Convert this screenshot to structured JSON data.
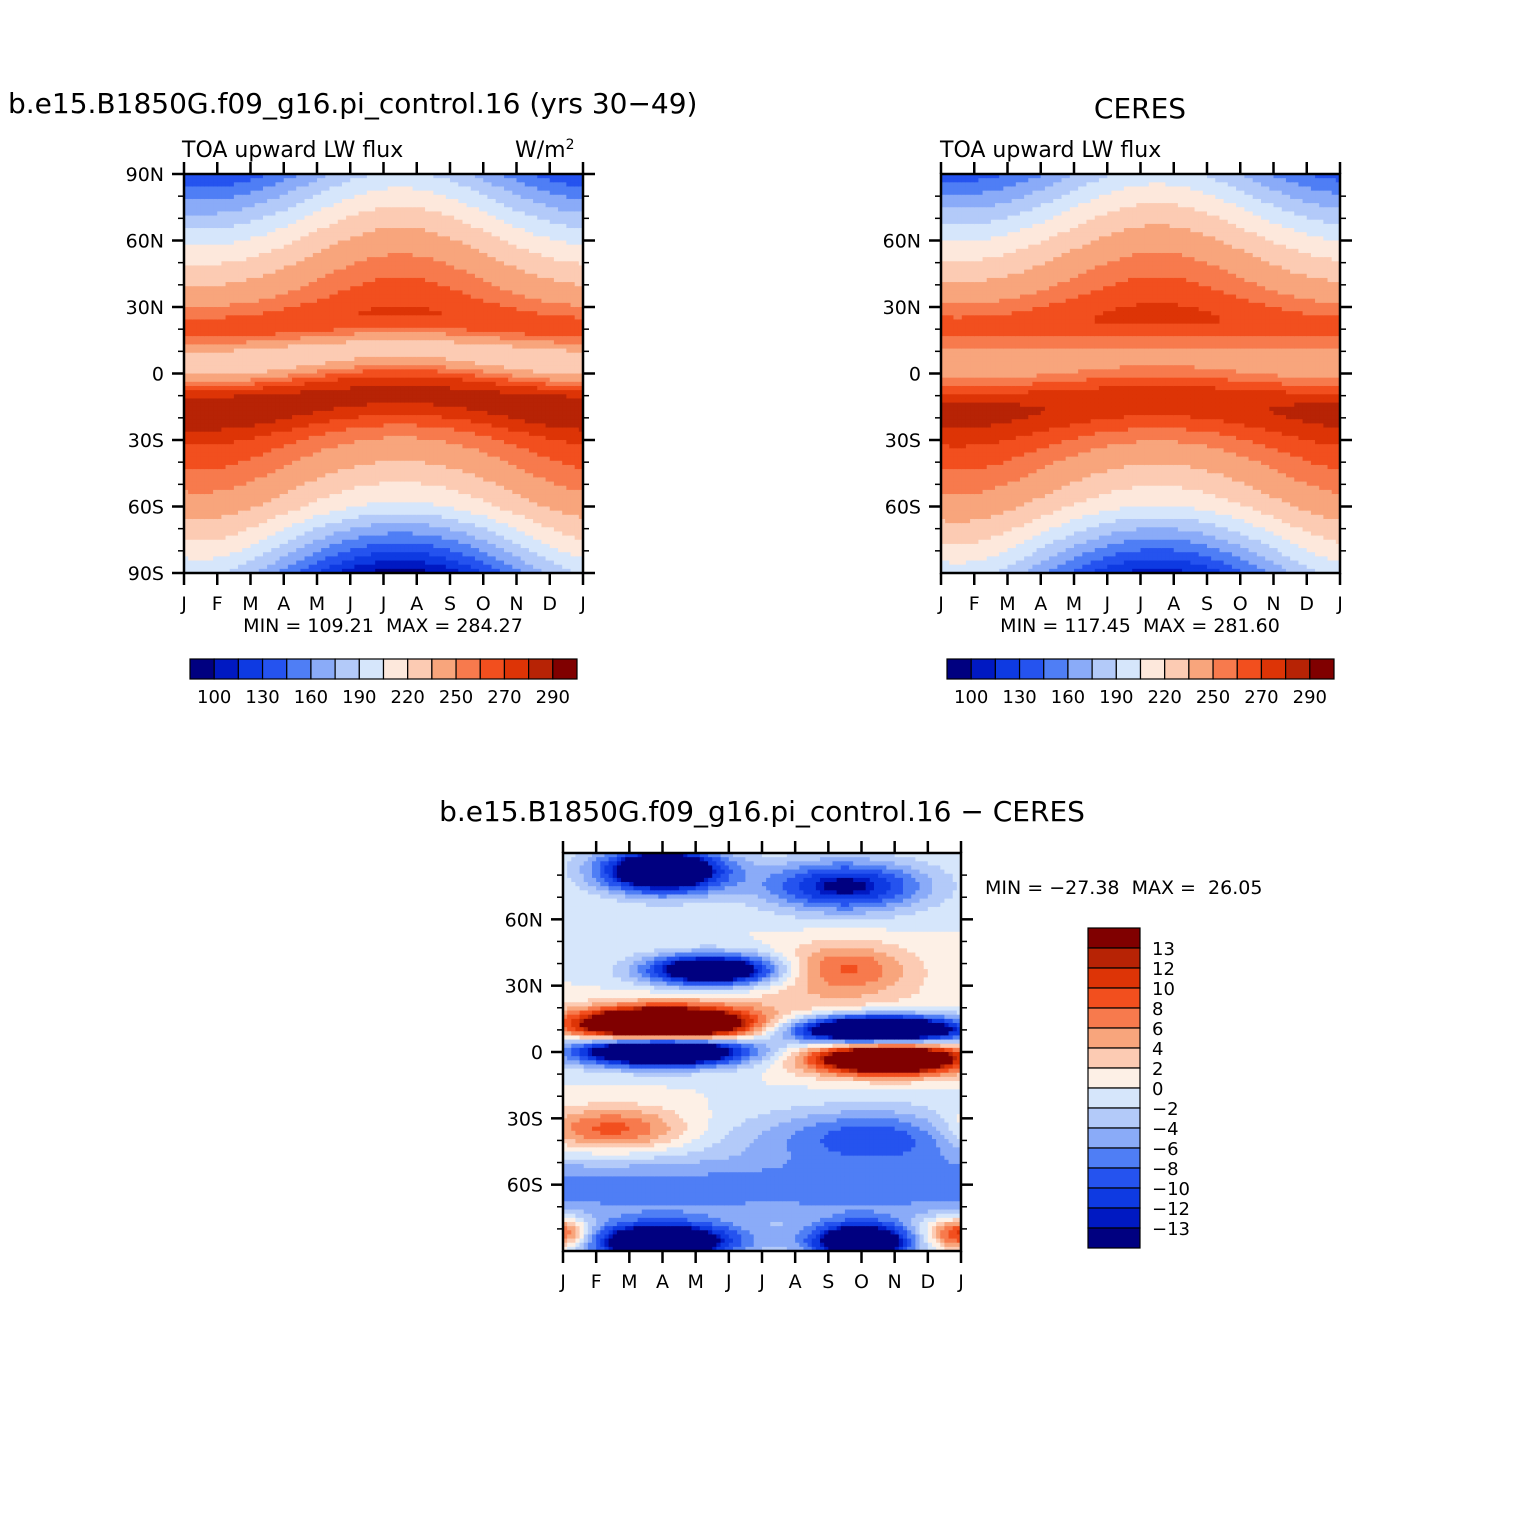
{
  "palette": {
    "full": [
      "#000080",
      "#0019c2",
      "#0e3ae2",
      "#2553ef",
      "#4f7ef5",
      "#8aabf8",
      "#b3caf9",
      "#d6e6fb",
      "#fde8dc",
      "#fccbb3",
      "#f8a57c",
      "#f77a4d",
      "#f24f1e",
      "#dd3406",
      "#b72305",
      "#800000"
    ],
    "diff": [
      "#000080",
      "#0019c2",
      "#0e3ae2",
      "#2553ef",
      "#4f7ef5",
      "#8aabf8",
      "#b3caf9",
      "#d6e6fb",
      "#fdf0e6",
      "#fccbb3",
      "#f8a57c",
      "#f77a4d",
      "#f24f1e",
      "#dd3406",
      "#b72305",
      "#800000"
    ]
  },
  "chart_data": [
    {
      "type": "heatmap",
      "title": "b.e15.B1850G.f09_g16.pi_control.16 (yrs 30−49)",
      "left_label": "TOA upward LW flux",
      "right_label": "W/m",
      "right_label_sup": "2",
      "x_tick_labels": [
        "J",
        "F",
        "M",
        "A",
        "M",
        "J",
        "J",
        "A",
        "S",
        "O",
        "N",
        "D",
        "J"
      ],
      "y_tick_labels": [
        "90N",
        "60N",
        "30N",
        "0",
        "30S",
        "60S",
        "90S"
      ],
      "y_ticks": [
        90,
        60,
        30,
        0,
        -30,
        -60,
        -90
      ],
      "ylim": [
        -90,
        90
      ],
      "stats_text": "MIN = 109.21  MAX = 284.27",
      "min": 109.21,
      "max": 284.27,
      "colorbar": {
        "orientation": "horizontal",
        "levels": [
          100,
          115,
          130,
          145,
          160,
          175,
          190,
          205,
          220,
          235,
          250,
          260,
          270,
          280,
          290
        ],
        "labels": [
          "100",
          "130",
          "160",
          "190",
          "220",
          "250",
          "270",
          "290"
        ]
      },
      "field": "model"
    },
    {
      "type": "heatmap",
      "title": "CERES",
      "left_label": "TOA upward LW flux",
      "x_tick_labels": [
        "J",
        "F",
        "M",
        "A",
        "M",
        "J",
        "J",
        "A",
        "S",
        "O",
        "N",
        "D",
        "J"
      ],
      "y_tick_labels": [
        "60N",
        "30N",
        "0",
        "30S",
        "60S"
      ],
      "y_ticks": [
        60,
        30,
        0,
        -30,
        -60
      ],
      "ylim": [
        -90,
        90
      ],
      "stats_text": "MIN = 117.45  MAX = 281.60",
      "min": 117.45,
      "max": 281.6,
      "colorbar": {
        "orientation": "horizontal",
        "levels": [
          100,
          115,
          130,
          145,
          160,
          175,
          190,
          205,
          220,
          235,
          250,
          260,
          270,
          280,
          290
        ],
        "labels": [
          "100",
          "130",
          "160",
          "190",
          "220",
          "250",
          "270",
          "290"
        ]
      },
      "field": "ceres"
    },
    {
      "type": "heatmap",
      "title": "b.e15.B1850G.f09_g16.pi_control.16 − CERES",
      "x_tick_labels": [
        "J",
        "F",
        "M",
        "A",
        "M",
        "J",
        "J",
        "A",
        "S",
        "O",
        "N",
        "D",
        "J"
      ],
      "y_tick_labels": [
        "60N",
        "30N",
        "0",
        "30S",
        "60S"
      ],
      "y_ticks": [
        60,
        30,
        0,
        -30,
        -60
      ],
      "ylim": [
        -90,
        90
      ],
      "stats_text": "MIN = −27.38  MAX =  26.05",
      "min": -27.38,
      "max": 26.05,
      "colorbar": {
        "orientation": "vertical",
        "levels": [
          -13,
          -12,
          -10,
          -8,
          -6,
          -4,
          -2,
          0,
          2,
          4,
          6,
          8,
          10,
          12,
          13
        ],
        "labels": [
          "13",
          "12",
          "10",
          "8",
          "6",
          "4",
          "2",
          "0",
          "−2",
          "−4",
          "−6",
          "−8",
          "−10",
          "−12",
          "−13"
        ]
      },
      "field": "diff"
    }
  ]
}
